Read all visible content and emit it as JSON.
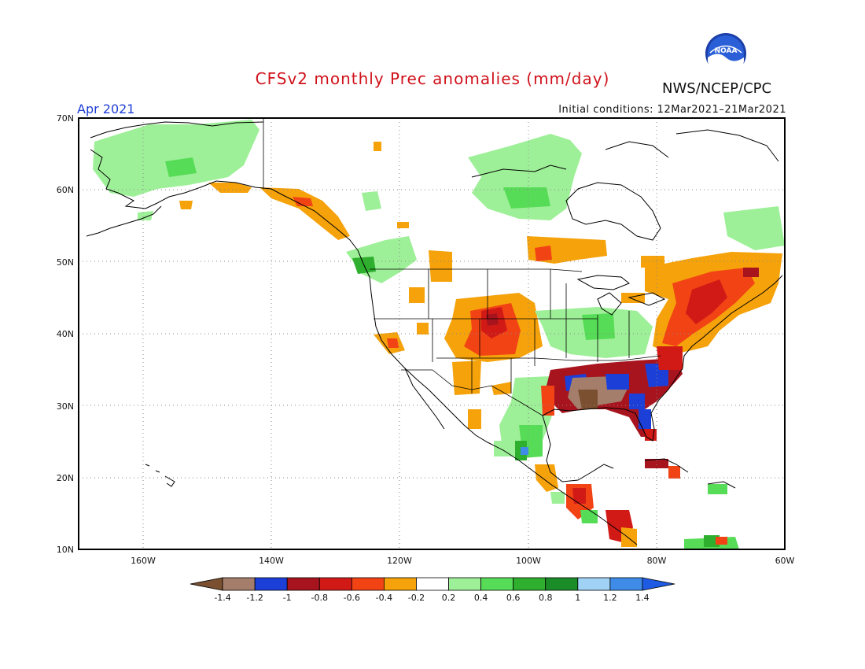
{
  "title": "CFSv2 monthly Prec anomalies (mm/day)",
  "month": "Apr 2021",
  "initial_conditions": "Initial conditions: 12Mar2021–21Mar2021",
  "agency": "NWS/NCEP/CPC",
  "logo_text": "NOAA",
  "map": {
    "lon_range": [
      -170,
      -60
    ],
    "lat_range": [
      10,
      70
    ],
    "lat_labels": [
      "70N",
      "60N",
      "50N",
      "40N",
      "30N",
      "20N",
      "10N"
    ],
    "lon_labels": [
      "160W",
      "140W",
      "120W",
      "100W",
      "80W",
      "60W"
    ]
  },
  "colorbar": {
    "labels": [
      "-1.4",
      "-1.2",
      "-1",
      "-0.8",
      "-0.6",
      "-0.4",
      "-0.2",
      "0.2",
      "0.4",
      "0.6",
      "0.8",
      "1",
      "1.2",
      "1.4"
    ],
    "colors": [
      "#7a5030",
      "#a47e6a",
      "#1c3fd8",
      "#a8141e",
      "#d11a16",
      "#f24315",
      "#f5a20b",
      "#ffffff",
      "#9ef098",
      "#57dc57",
      "#2eaf2e",
      "#1a8c28",
      "#9fd2f5",
      "#3f8ce8",
      "#1f5ae2"
    ]
  }
}
